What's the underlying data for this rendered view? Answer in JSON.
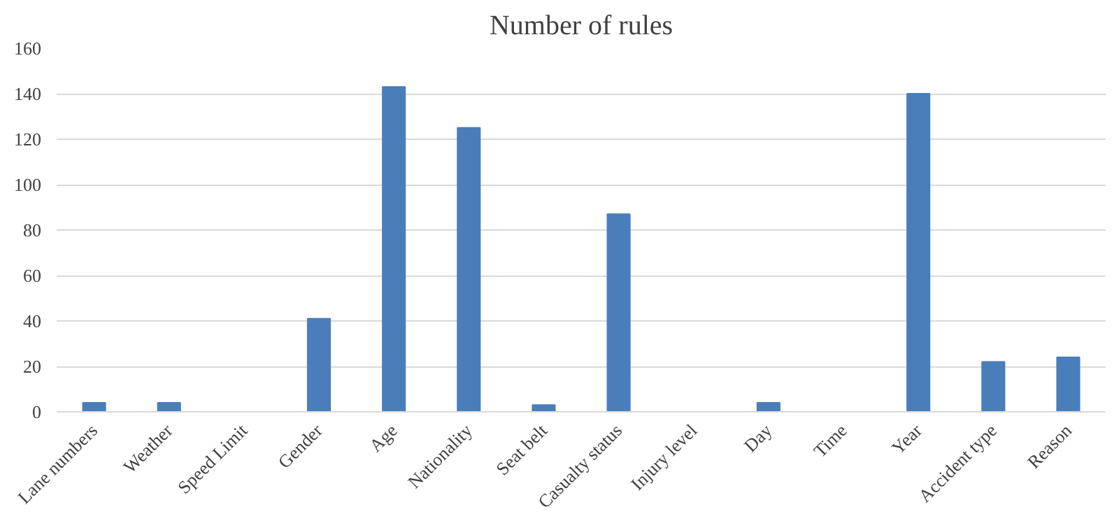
{
  "chart_data": {
    "type": "bar",
    "title": "Number of rules",
    "categories": [
      "Lane numbers",
      "Weather",
      "Speed Limit",
      "Gender",
      "Age",
      "Nationality",
      "Seat belt",
      "Casualty status",
      "Injury level",
      "Day",
      "Time",
      "Year",
      "Accident type",
      "Reason"
    ],
    "values": [
      4,
      4,
      0,
      41,
      143,
      125,
      3,
      87,
      0,
      4,
      0,
      140,
      22,
      24
    ],
    "color": "#4a7ebb",
    "ylim": [
      0,
      160
    ],
    "yticks": [
      0,
      20,
      40,
      60,
      80,
      100,
      120,
      140,
      160
    ],
    "grid": "y"
  }
}
